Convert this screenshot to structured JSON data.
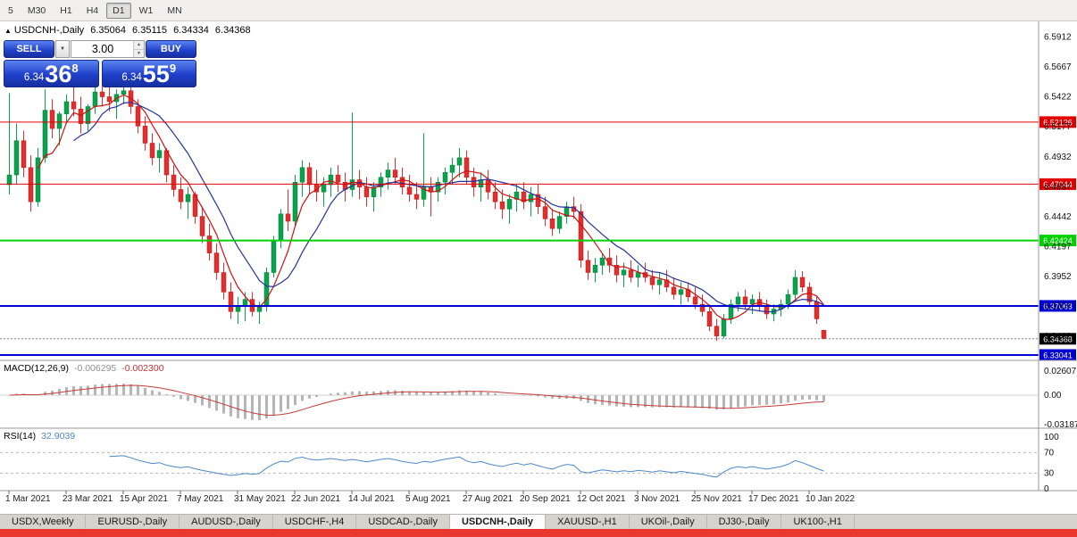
{
  "toolbar": {
    "timeframes": [
      {
        "label": "5",
        "active": false
      },
      {
        "label": "M30",
        "active": false
      },
      {
        "label": "H1",
        "active": false
      },
      {
        "label": "H4",
        "active": false
      },
      {
        "label": "D1",
        "active": true
      },
      {
        "label": "W1",
        "active": false
      },
      {
        "label": "MN",
        "active": false
      }
    ]
  },
  "chart": {
    "header": {
      "collapse_icon": "▲",
      "title": "USDCNH-,Daily",
      "open": "6.35064",
      "high": "6.35115",
      "low": "6.34334",
      "close": "6.34368"
    },
    "trade_panel": {
      "sell_label": "SELL",
      "buy_label": "BUY",
      "volume": "3.00",
      "dropdown_icon": "▼",
      "spin_up": "▲",
      "spin_down": "▼",
      "sell_price": {
        "prefix": "6.34",
        "big": "36",
        "sup": "8"
      },
      "buy_price": {
        "prefix": "6.34",
        "big": "55",
        "sup": "9"
      }
    }
  },
  "chart_data": {
    "type": "candlestick",
    "symbol": "USDCNH-",
    "timeframe": "Daily",
    "y_axis_labels": [
      "6.5912",
      "6.5667",
      "6.5422",
      "6.5177",
      "6.4932",
      "6.4687",
      "6.4442",
      "6.4197",
      "6.3952",
      "6.3707",
      "6.3462"
    ],
    "x_ticks": [
      {
        "label": "1 Mar 2021",
        "i": 0
      },
      {
        "label": "23 Mar 2021",
        "i": 8
      },
      {
        "label": "15 Apr 2021",
        "i": 16
      },
      {
        "label": "7 May 2021",
        "i": 24
      },
      {
        "label": "31 May 2021",
        "i": 32
      },
      {
        "label": "22 Jun 2021",
        "i": 40
      },
      {
        "label": "14 Jul 2021",
        "i": 48
      },
      {
        "label": "5 Aug 2021",
        "i": 56
      },
      {
        "label": "27 Aug 2021",
        "i": 64
      },
      {
        "label": "20 Sep 2021",
        "i": 72
      },
      {
        "label": "12 Oct 2021",
        "i": 80
      },
      {
        "label": "3 Nov 2021",
        "i": 88
      },
      {
        "label": "25 Nov 2021",
        "i": 96
      },
      {
        "label": "17 Dec 2021",
        "i": 104
      },
      {
        "label": "10 Jan 2022",
        "i": 112
      }
    ],
    "hlines": [
      {
        "price": 6.52126,
        "label": "6.52126",
        "color": "#e00000",
        "width": 1
      },
      {
        "price": 6.47044,
        "label": "6.47044",
        "color": "#e00000",
        "width": 1
      },
      {
        "price": 6.42424,
        "label": "6.42424",
        "color": "#00d200",
        "width": 2
      },
      {
        "price": 6.37063,
        "label": "6.37063",
        "color": "#0000d2",
        "width": 2
      },
      {
        "price": 6.33041,
        "label": "6.33041",
        "color": "#0000d2",
        "width": 2
      }
    ],
    "current_price": {
      "value": 6.34368,
      "label": "6.34368",
      "badge_color": "#000000"
    },
    "indicators": {
      "macd": {
        "title": "MACD(12,26,9)",
        "value_main": "-0.006295",
        "value_signal": "-0.002300",
        "axis": [
          "0.02607",
          "0.00",
          "-0.03187"
        ],
        "fast": 12,
        "slow": 26,
        "signal": 9
      },
      "rsi": {
        "title": "RSI(14)",
        "value": "32.9039",
        "axis": [
          "100",
          "70",
          "30",
          "0"
        ],
        "levels": [
          70,
          30
        ],
        "period": 14
      }
    },
    "candles": [
      [
        6.47,
        6.545,
        6.462,
        6.478
      ],
      [
        6.478,
        6.52,
        6.47,
        6.506
      ],
      [
        6.506,
        6.514,
        6.476,
        6.484
      ],
      [
        6.484,
        6.494,
        6.448,
        6.456
      ],
      [
        6.456,
        6.5,
        6.452,
        6.492
      ],
      [
        6.492,
        6.548,
        6.488,
        6.531
      ],
      [
        6.531,
        6.54,
        6.508,
        6.516
      ],
      [
        6.516,
        6.53,
        6.502,
        6.528
      ],
      [
        6.528,
        6.544,
        6.52,
        6.538
      ],
      [
        6.538,
        6.55,
        6.526,
        6.532
      ],
      [
        6.532,
        6.542,
        6.512,
        6.52
      ],
      [
        6.52,
        6.536,
        6.514,
        6.534
      ],
      [
        6.534,
        6.55,
        6.528,
        6.546
      ],
      [
        6.546,
        6.552,
        6.534,
        6.542
      ],
      [
        6.542,
        6.551,
        6.53,
        6.538
      ],
      [
        6.538,
        6.548,
        6.524,
        6.544
      ],
      [
        6.544,
        6.55,
        6.536,
        6.547
      ],
      [
        6.547,
        6.552,
        6.528,
        6.534
      ],
      [
        6.534,
        6.54,
        6.512,
        6.518
      ],
      [
        6.518,
        6.526,
        6.498,
        6.504
      ],
      [
        6.504,
        6.512,
        6.486,
        6.492
      ],
      [
        6.492,
        6.504,
        6.48,
        6.498
      ],
      [
        6.498,
        6.5,
        6.472,
        6.478
      ],
      [
        6.478,
        6.486,
        6.46,
        6.466
      ],
      [
        6.466,
        6.476,
        6.45,
        6.456
      ],
      [
        6.456,
        6.468,
        6.442,
        6.462
      ],
      [
        6.462,
        6.464,
        6.438,
        6.444
      ],
      [
        6.444,
        6.452,
        6.422,
        6.428
      ],
      [
        6.428,
        6.438,
        6.408,
        6.414
      ],
      [
        6.414,
        6.422,
        6.392,
        6.398
      ],
      [
        6.398,
        6.406,
        6.376,
        6.382
      ],
      [
        6.382,
        6.39,
        6.36,
        6.366
      ],
      [
        6.366,
        6.378,
        6.356,
        6.37
      ],
      [
        6.37,
        6.382,
        6.358,
        6.376
      ],
      [
        6.376,
        6.382,
        6.362,
        6.366
      ],
      [
        6.366,
        6.374,
        6.356,
        6.37
      ],
      [
        6.37,
        6.402,
        6.366,
        6.398
      ],
      [
        6.398,
        6.428,
        6.394,
        6.424
      ],
      [
        6.424,
        6.45,
        6.418,
        6.446
      ],
      [
        6.446,
        6.466,
        6.432,
        6.44
      ],
      [
        6.44,
        6.478,
        6.436,
        6.472
      ],
      [
        6.472,
        6.49,
        6.46,
        6.484
      ],
      [
        6.484,
        6.488,
        6.462,
        6.47
      ],
      [
        6.47,
        6.482,
        6.456,
        6.464
      ],
      [
        6.464,
        6.476,
        6.452,
        6.47
      ],
      [
        6.47,
        6.484,
        6.46,
        6.478
      ],
      [
        6.478,
        6.486,
        6.464,
        6.472
      ],
      [
        6.472,
        6.48,
        6.456,
        6.466
      ],
      [
        6.466,
        6.529,
        6.46,
        6.474
      ],
      [
        6.474,
        6.482,
        6.458,
        6.468
      ],
      [
        6.468,
        6.476,
        6.452,
        6.46
      ],
      [
        6.46,
        6.472,
        6.448,
        6.468
      ],
      [
        6.468,
        6.48,
        6.46,
        6.476
      ],
      [
        6.476,
        6.488,
        6.466,
        6.482
      ],
      [
        6.482,
        6.492,
        6.47,
        6.476
      ],
      [
        6.476,
        6.484,
        6.462,
        6.468
      ],
      [
        6.468,
        6.478,
        6.456,
        6.462
      ],
      [
        6.462,
        6.472,
        6.45,
        6.458
      ],
      [
        6.458,
        6.512,
        6.452,
        6.468
      ],
      [
        6.468,
        6.476,
        6.444,
        6.464
      ],
      [
        6.464,
        6.476,
        6.456,
        6.472
      ],
      [
        6.472,
        6.484,
        6.462,
        6.48
      ],
      [
        6.48,
        6.492,
        6.47,
        6.486
      ],
      [
        6.486,
        6.5,
        6.476,
        6.492
      ],
      [
        6.492,
        6.498,
        6.47,
        6.476
      ],
      [
        6.476,
        6.484,
        6.46,
        6.468
      ],
      [
        6.468,
        6.48,
        6.456,
        6.474
      ],
      [
        6.474,
        6.482,
        6.458,
        6.464
      ],
      [
        6.464,
        6.472,
        6.45,
        6.456
      ],
      [
        6.456,
        6.466,
        6.442,
        6.45
      ],
      [
        6.45,
        6.462,
        6.438,
        6.458
      ],
      [
        6.458,
        6.47,
        6.448,
        6.464
      ],
      [
        6.464,
        6.472,
        6.45,
        6.456
      ],
      [
        6.456,
        6.468,
        6.444,
        6.462
      ],
      [
        6.462,
        6.47,
        6.446,
        6.452
      ],
      [
        6.452,
        6.46,
        6.436,
        6.442
      ],
      [
        6.442,
        6.45,
        6.428,
        6.434
      ],
      [
        6.434,
        6.448,
        6.43,
        6.444
      ],
      [
        6.444,
        6.456,
        6.438,
        6.452
      ],
      [
        6.452,
        6.46,
        6.442,
        6.448
      ],
      [
        6.448,
        6.454,
        6.402,
        6.408
      ],
      [
        6.408,
        6.416,
        6.392,
        6.398
      ],
      [
        6.398,
        6.41,
        6.39,
        6.404
      ],
      [
        6.404,
        6.414,
        6.396,
        6.41
      ],
      [
        6.41,
        6.418,
        6.398,
        6.404
      ],
      [
        6.404,
        6.412,
        6.39,
        6.396
      ],
      [
        6.396,
        6.406,
        6.386,
        6.4
      ],
      [
        6.4,
        6.408,
        6.39,
        6.394
      ],
      [
        6.394,
        6.404,
        6.386,
        6.398
      ],
      [
        6.398,
        6.406,
        6.39,
        6.394
      ],
      [
        6.394,
        6.4,
        6.384,
        6.388
      ],
      [
        6.388,
        6.398,
        6.38,
        6.392
      ],
      [
        6.392,
        6.4,
        6.382,
        6.386
      ],
      [
        6.386,
        6.394,
        6.376,
        6.38
      ],
      [
        6.38,
        6.39,
        6.372,
        6.384
      ],
      [
        6.384,
        6.39,
        6.374,
        6.378
      ],
      [
        6.378,
        6.386,
        6.368,
        6.372
      ],
      [
        6.372,
        6.38,
        6.362,
        6.366
      ],
      [
        6.366,
        6.372,
        6.35,
        6.354
      ],
      [
        6.354,
        6.36,
        6.342,
        6.346
      ],
      [
        6.346,
        6.364,
        6.344,
        6.36
      ],
      [
        6.36,
        6.376,
        6.356,
        6.372
      ],
      [
        6.372,
        6.382,
        6.366,
        6.378
      ],
      [
        6.378,
        6.384,
        6.368,
        6.372
      ],
      [
        6.372,
        6.38,
        6.364,
        6.376
      ],
      [
        6.376,
        6.382,
        6.366,
        6.37
      ],
      [
        6.37,
        6.376,
        6.36,
        6.364
      ],
      [
        6.364,
        6.372,
        6.358,
        6.368
      ],
      [
        6.368,
        6.376,
        6.362,
        6.372
      ],
      [
        6.372,
        6.384,
        6.368,
        6.38
      ],
      [
        6.38,
        6.4,
        6.376,
        6.394
      ],
      [
        6.394,
        6.399,
        6.382,
        6.386
      ],
      [
        6.386,
        6.39,
        6.37,
        6.374
      ],
      [
        6.374,
        6.378,
        6.356,
        6.36
      ],
      [
        6.35064,
        6.35115,
        6.34334,
        6.34368
      ]
    ]
  },
  "tabs": {
    "items": [
      {
        "label": "USDX,Weekly",
        "active": false
      },
      {
        "label": "EURUSD-,Daily",
        "active": false
      },
      {
        "label": "AUDUSD-,Daily",
        "active": false
      },
      {
        "label": "USDCHF-,H4",
        "active": false
      },
      {
        "label": "USDCAD-,Daily",
        "active": false
      },
      {
        "label": "USDCNH-,Daily",
        "active": true
      },
      {
        "label": "XAUUSD-,H1",
        "active": false
      },
      {
        "label": "UKOil-,Daily",
        "active": false
      },
      {
        "label": "DJ30-,Daily",
        "active": false
      },
      {
        "label": "UK100-,H1",
        "active": false
      }
    ]
  },
  "colors": {
    "candle_up": "#0aa24e",
    "candle_down": "#e22e2e",
    "ma_fast": "#cc1111",
    "ma_slow": "#26339b",
    "macd_hist": "#b6b6b6",
    "macd_signal": "#c43c3c",
    "rsi_line": "#4f87c5",
    "status_strip": "#e8382f",
    "trade_button_blue": "#1f3fca"
  }
}
